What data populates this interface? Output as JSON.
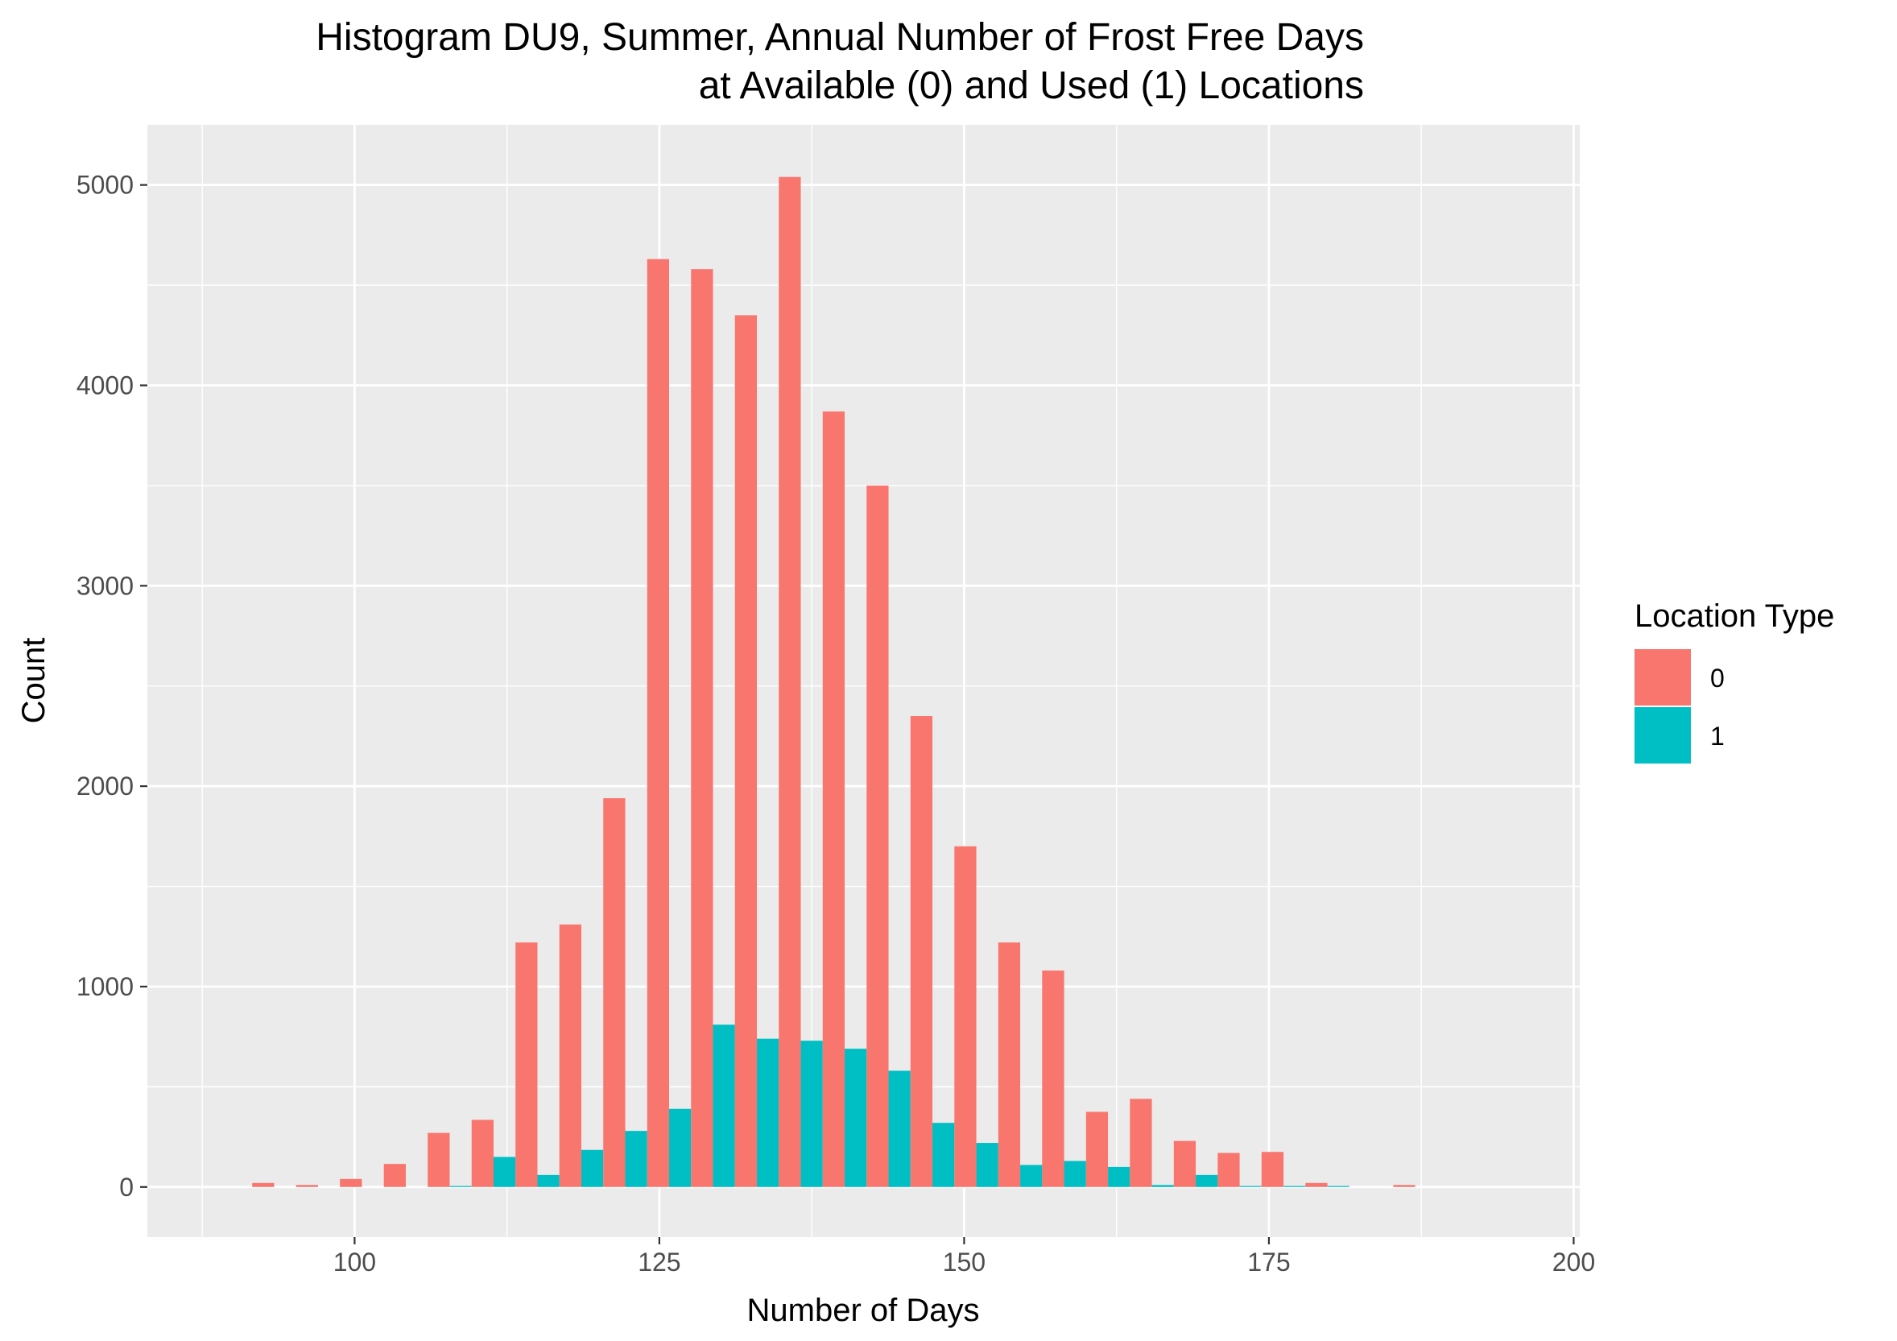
{
  "chart_data": {
    "type": "bar",
    "title_line1": "Histogram DU9, Summer, Annual Number of Frost Free Days",
    "title_line2": "at Available (0) and Used (1) Locations",
    "xlabel": "Number of Days",
    "ylabel": "Count",
    "xlim": [
      83,
      200.5
    ],
    "ylim": [
      -250,
      5300
    ],
    "x_ticks": [
      100,
      125,
      150,
      175,
      200
    ],
    "x_tick_labels": [
      "100",
      "125",
      "150",
      "175",
      "200"
    ],
    "y_ticks": [
      0,
      1000,
      2000,
      3000,
      4000,
      5000
    ],
    "y_tick_labels": [
      "0",
      "1000",
      "2000",
      "3000",
      "4000",
      "5000"
    ],
    "bin_width": 3.6,
    "bin_centers": [
      93.4,
      97.0,
      100.6,
      104.2,
      107.8,
      111.4,
      115.0,
      118.6,
      122.2,
      125.8,
      129.4,
      133.0,
      136.6,
      140.2,
      143.8,
      147.4,
      151.0,
      154.6,
      158.2,
      161.8,
      165.4,
      169.0,
      172.6,
      176.2,
      179.8,
      183.4,
      187.0
    ],
    "grid": true,
    "legend_position": "right",
    "legend_title": "Location Type",
    "series": [
      {
        "name": "0",
        "color": "#F8766D",
        "values": [
          20,
          10,
          40,
          115,
          270,
          335,
          1220,
          1310,
          1940,
          4630,
          4580,
          4350,
          5040,
          3870,
          3500,
          2350,
          1700,
          1220,
          1080,
          375,
          440,
          230,
          170,
          175,
          20,
          0,
          10
        ]
      },
      {
        "name": "1",
        "color": "#00BFC4",
        "values": [
          0,
          0,
          0,
          0,
          5,
          150,
          60,
          185,
          280,
          390,
          810,
          740,
          730,
          690,
          580,
          320,
          220,
          110,
          130,
          100,
          10,
          60,
          5,
          5,
          5,
          0,
          0
        ]
      }
    ]
  }
}
